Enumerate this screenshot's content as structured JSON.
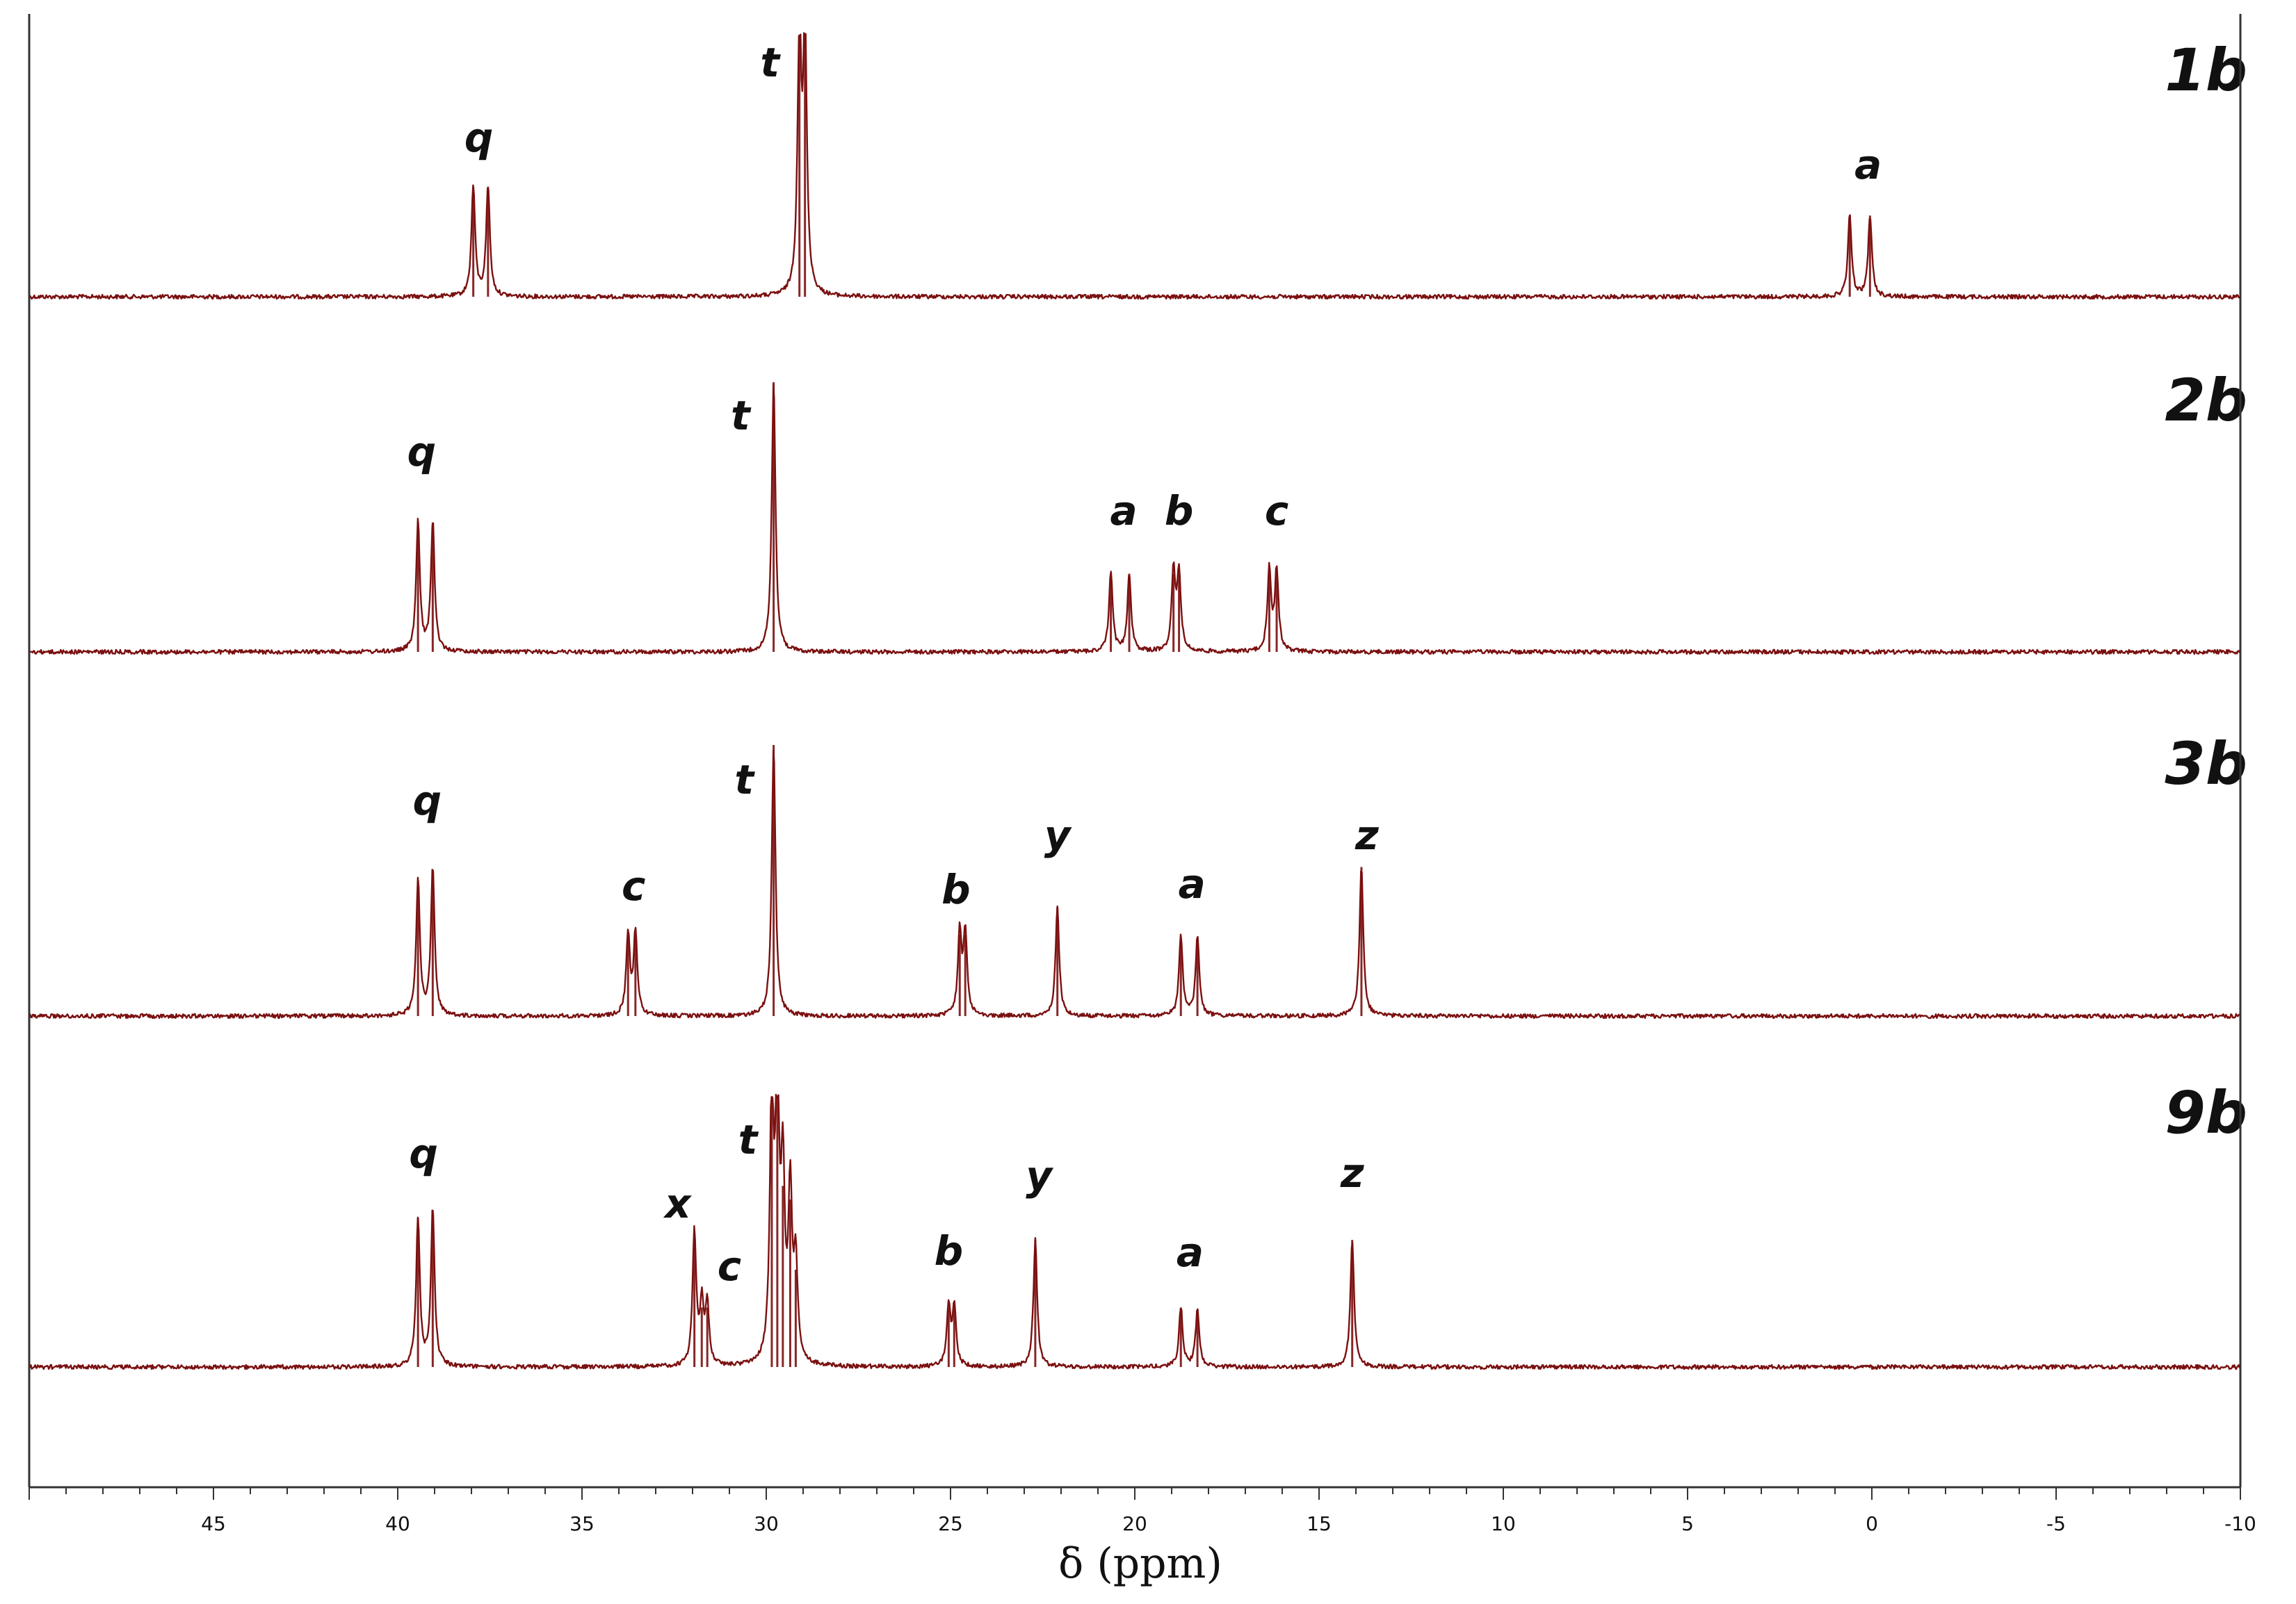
{
  "chart_data": {
    "type": "line",
    "xlabel": "δ (ppm)",
    "xlim": [
      50,
      -10
    ],
    "x_ticks": [
      45,
      40,
      35,
      30,
      25,
      20,
      15,
      10,
      5,
      0,
      -5,
      -10
    ],
    "x_minor_step": 1,
    "grid": false,
    "reversed_x": true,
    "colors": {
      "line": "#7b1010",
      "text": "#111111",
      "axis": "#333333"
    },
    "series": [
      {
        "name": "1b",
        "peaks": [
          {
            "x": 37.95,
            "h": 0.42
          },
          {
            "x": 37.55,
            "h": 0.42
          },
          {
            "x": 29.1,
            "h": 1.0
          },
          {
            "x": 28.95,
            "h": 1.0
          },
          {
            "x": 0.6,
            "h": 0.31
          },
          {
            "x": 0.05,
            "h": 0.31
          }
        ],
        "labels": [
          {
            "text": "q",
            "x": 37.8
          },
          {
            "text": "t",
            "x": 29.9
          },
          {
            "text": "a",
            "x": 0.1
          }
        ]
      },
      {
        "name": "2b",
        "peaks": [
          {
            "x": 39.45,
            "h": 0.48
          },
          {
            "x": 39.05,
            "h": 0.48
          },
          {
            "x": 29.8,
            "h": 1.0
          },
          {
            "x": 20.65,
            "h": 0.29
          },
          {
            "x": 20.15,
            "h": 0.29
          },
          {
            "x": 18.95,
            "h": 0.29
          },
          {
            "x": 18.8,
            "h": 0.29
          },
          {
            "x": 16.35,
            "h": 0.3
          },
          {
            "x": 16.15,
            "h": 0.3
          }
        ],
        "labels": [
          {
            "text": "q",
            "x": 39.35
          },
          {
            "text": "t",
            "x": 30.7
          },
          {
            "text": "a",
            "x": 20.3
          },
          {
            "text": "b",
            "x": 18.8
          },
          {
            "text": "c",
            "x": 16.15
          }
        ]
      },
      {
        "name": "3b",
        "peaks": [
          {
            "x": 39.45,
            "h": 0.5
          },
          {
            "x": 39.05,
            "h": 0.54
          },
          {
            "x": 33.75,
            "h": 0.3
          },
          {
            "x": 33.55,
            "h": 0.3
          },
          {
            "x": 29.8,
            "h": 1.0
          },
          {
            "x": 24.75,
            "h": 0.3
          },
          {
            "x": 24.6,
            "h": 0.3
          },
          {
            "x": 22.1,
            "h": 0.4
          },
          {
            "x": 18.75,
            "h": 0.29
          },
          {
            "x": 18.3,
            "h": 0.29
          },
          {
            "x": 13.85,
            "h": 0.55
          }
        ],
        "labels": [
          {
            "text": "q",
            "x": 39.2
          },
          {
            "text": "c",
            "x": 33.6
          },
          {
            "text": "t",
            "x": 30.6
          },
          {
            "text": "b",
            "x": 24.85
          },
          {
            "text": "y",
            "x": 22.1
          },
          {
            "text": "a",
            "x": 18.45
          },
          {
            "text": "z",
            "x": 13.7
          }
        ]
      },
      {
        "name": "9b",
        "peaks": [
          {
            "x": 39.45,
            "h": 0.55
          },
          {
            "x": 39.05,
            "h": 0.58
          },
          {
            "x": 31.95,
            "h": 0.49
          },
          {
            "x": 31.75,
            "h": 0.22
          },
          {
            "x": 31.6,
            "h": 0.22
          },
          {
            "x": 29.85,
            "h": 1.0
          },
          {
            "x": 29.7,
            "h": 1.0
          },
          {
            "x": 29.55,
            "h": 0.67
          },
          {
            "x": 29.35,
            "h": 0.62
          },
          {
            "x": 29.2,
            "h": 0.36
          },
          {
            "x": 25.05,
            "h": 0.22
          },
          {
            "x": 24.9,
            "h": 0.22
          },
          {
            "x": 22.7,
            "h": 0.47
          },
          {
            "x": 18.75,
            "h": 0.22
          },
          {
            "x": 18.3,
            "h": 0.21
          },
          {
            "x": 14.1,
            "h": 0.47
          }
        ],
        "labels": [
          {
            "text": "q",
            "x": 39.3
          },
          {
            "text": "x",
            "x": 32.4
          },
          {
            "text": "c",
            "x": 31.0
          },
          {
            "text": "t",
            "x": 30.5
          },
          {
            "text": "b",
            "x": 25.05
          },
          {
            "text": "y",
            "x": 22.6
          },
          {
            "text": "a",
            "x": 18.5
          },
          {
            "text": "z",
            "x": 14.1
          }
        ]
      }
    ]
  }
}
